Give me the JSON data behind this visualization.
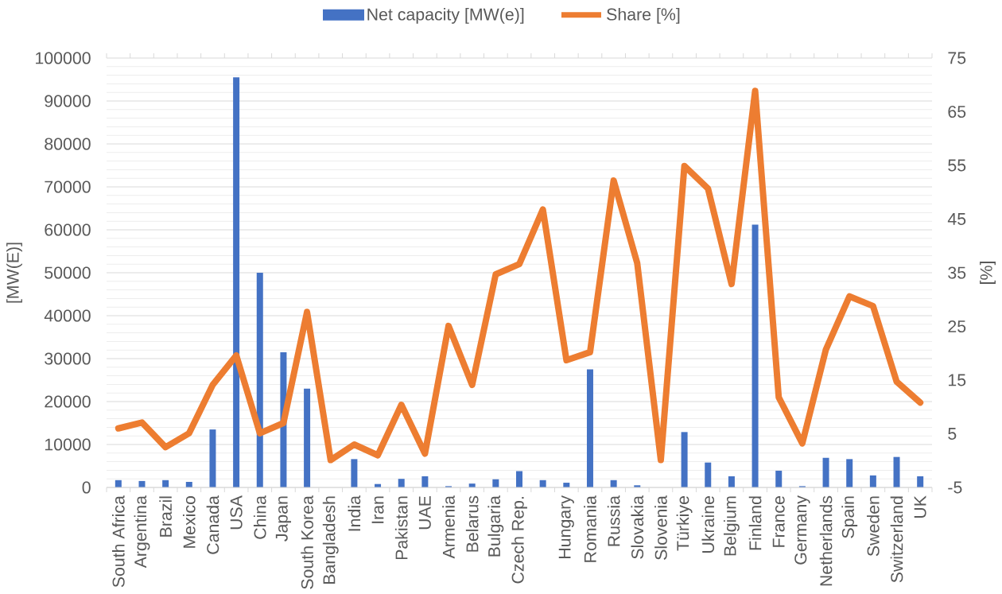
{
  "chart_data": {
    "type": "bar",
    "categories": [
      "South Africa",
      "Argentina",
      "Brazil",
      "Mexico",
      "Canada",
      "USA",
      "China",
      "Japan",
      "South Korea",
      "Bangladesh",
      "India",
      "Iran",
      "Pakistan",
      "UAE",
      "Armenia",
      "Belarus",
      "Bulgaria",
      "Czech Rep.",
      null,
      "Hungary",
      "Romania",
      "Russia",
      "Slovakia",
      "Slovenia",
      "Türkiye",
      "Ukraine",
      "Belgium",
      "Finland",
      "France",
      "Germany",
      "Netherlands",
      "Spain",
      "Sweden",
      "Switzerland",
      "UK"
    ],
    "series": [
      {
        "name": "Net capacity [MW(e)]",
        "color": "#4472c4",
        "values": [
          1700,
          1500,
          1700,
          1300,
          13500,
          95500,
          50000,
          31500,
          23000,
          0,
          6600,
          800,
          2000,
          2600,
          300,
          900,
          1900,
          3800,
          1700,
          1100,
          27500,
          1700,
          500,
          0,
          12900,
          5800,
          2600,
          61200,
          3900,
          300,
          6900,
          6600,
          2800,
          7100,
          2600
        ]
      },
      {
        "name": "Share [%]",
        "type": "line",
        "axis": "y2",
        "color": "#ed7d31",
        "values": [
          6.0,
          7.1,
          2.5,
          5.1,
          14.1,
          19.6,
          5.1,
          7.0,
          27.7,
          0.1,
          3.0,
          1.0,
          10.4,
          1.3,
          25.1,
          14.1,
          34.7,
          36.6,
          46.8,
          18.7,
          20.2,
          52.2,
          36.8,
          0.1,
          54.9,
          50.7,
          32.9,
          68.9,
          11.8,
          3.2,
          20.7,
          30.6,
          28.8,
          14.7,
          10.8
        ]
      }
    ],
    "ylabel": "[MW(E)]",
    "y2label": "[%]",
    "ylim": [
      0,
      100000
    ],
    "yticks": [
      0,
      10000,
      20000,
      30000,
      40000,
      50000,
      60000,
      70000,
      80000,
      90000,
      100000
    ],
    "y2lim": [
      -5,
      75
    ],
    "y2ticks": [
      -5,
      5,
      15,
      25,
      35,
      45,
      55,
      65,
      75
    ],
    "grid": "y",
    "legend": "top"
  }
}
